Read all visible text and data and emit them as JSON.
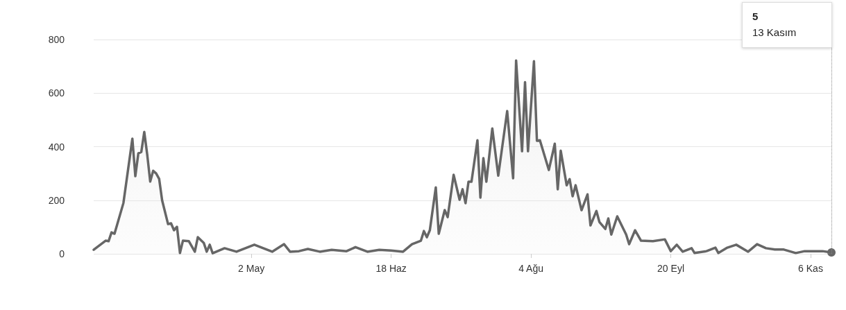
{
  "chart_data": {
    "type": "area",
    "x": [
      "--03-10",
      "--03-14",
      "--03-15",
      "--03-16",
      "--03-17",
      "--03-20",
      "--03-23",
      "--03-24",
      "--03-25",
      "--03-26",
      "--03-27",
      "--03-28",
      "--03-29",
      "--03-30",
      "--03-31",
      "--04-01",
      "--04-02",
      "--04-04",
      "--04-05",
      "--04-06",
      "--04-07",
      "--04-08",
      "--04-09",
      "--04-11",
      "--04-13",
      "--04-14",
      "--04-16",
      "--04-17",
      "--04-18",
      "--04-19",
      "--04-23",
      "--04-27",
      "--05-03",
      "--05-09",
      "--05-13",
      "--05-15",
      "--05-18",
      "--05-21",
      "--05-25",
      "--05-29",
      "--06-03",
      "--06-06",
      "--06-10",
      "--06-14",
      "--06-18",
      "--06-22",
      "--06-25",
      "--06-28",
      "--06-29",
      "--06-30",
      "--07-01",
      "--07-03",
      "--07-04",
      "--07-06",
      "--07-07",
      "--07-09",
      "--07-11",
      "--07-12",
      "--07-13",
      "--07-14",
      "--07-15",
      "--07-17",
      "--07-18",
      "--07-19",
      "--07-20",
      "--07-22",
      "--07-24",
      "--07-27",
      "--07-29",
      "--07-30",
      "--08-01",
      "--08-02",
      "--08-03",
      "--08-05",
      "--08-06",
      "--08-07",
      "--08-10",
      "--08-12",
      "--08-13",
      "--08-14",
      "--08-16",
      "--08-17",
      "--08-18",
      "--08-19",
      "--08-21",
      "--08-23",
      "--08-24",
      "--08-26",
      "--08-27",
      "--08-29",
      "--08-30",
      "--08-31",
      "--09-02",
      "--09-05",
      "--09-06",
      "--09-08",
      "--09-10",
      "--09-14",
      "--09-18",
      "--09-20",
      "--09-22",
      "--09-24",
      "--09-27",
      "--09-28",
      "--10-02",
      "--10-05",
      "--10-06",
      "--10-09",
      "--10-12",
      "--10-16",
      "--10-19",
      "--10-22",
      "--10-25",
      "--10-28",
      "--11-01",
      "--11-04",
      "--11-10",
      "--11-13"
    ],
    "series": [
      {
        "color": "#666666",
        "values": [
          15,
          49,
          47,
          80,
          75,
          190,
          430,
          290,
          375,
          380,
          455,
          370,
          270,
          310,
          300,
          280,
          200,
          111,
          114,
          88,
          101,
          3,
          49,
          47,
          8,
          62,
          41,
          8,
          34,
          2,
          21,
          8,
          34,
          8,
          36,
          8,
          10,
          18,
          8,
          15,
          10,
          25,
          8,
          15,
          12,
          8,
          36,
          49,
          85,
          62,
          88,
          248,
          75,
          163,
          137,
          295,
          202,
          241,
          189,
          269,
          269,
          424,
          210,
          357,
          269,
          468,
          292,
          533,
          282,
          722,
          383,
          641,
          383,
          719,
          422,
          424,
          313,
          411,
          241,
          385,
          256,
          279,
          215,
          256,
          163,
          222,
          106,
          160,
          119,
          93,
          132,
          72,
          140,
          72,
          36,
          88,
          49,
          47,
          54,
          10,
          34,
          8,
          21,
          3,
          10,
          23,
          3,
          23,
          34,
          8,
          36,
          21,
          16,
          16,
          3,
          10,
          10,
          5
        ]
      }
    ],
    "xlim": [
      "--03-10",
      "--11-13"
    ],
    "xticks": [
      {
        "value": "--05-02",
        "label": "2 May"
      },
      {
        "value": "--06-18",
        "label": "18 Haz"
      },
      {
        "value": "--08-04",
        "label": "4 Ağu"
      },
      {
        "value": "--09-20",
        "label": "20 Eyl"
      },
      {
        "value": "--11-06",
        "label": "6 Kas"
      }
    ],
    "ylim": [
      0,
      800
    ],
    "yticks": [
      0,
      200,
      400,
      600,
      800
    ],
    "grid": "y",
    "marker": "none",
    "line_style": "solid",
    "ref_lines": [
      {
        "axis": "x",
        "value": "--11-13",
        "label": null,
        "line_style": "dotted",
        "color": "#888888"
      }
    ],
    "annotations": [
      "5",
      "13 Kasım"
    ]
  }
}
